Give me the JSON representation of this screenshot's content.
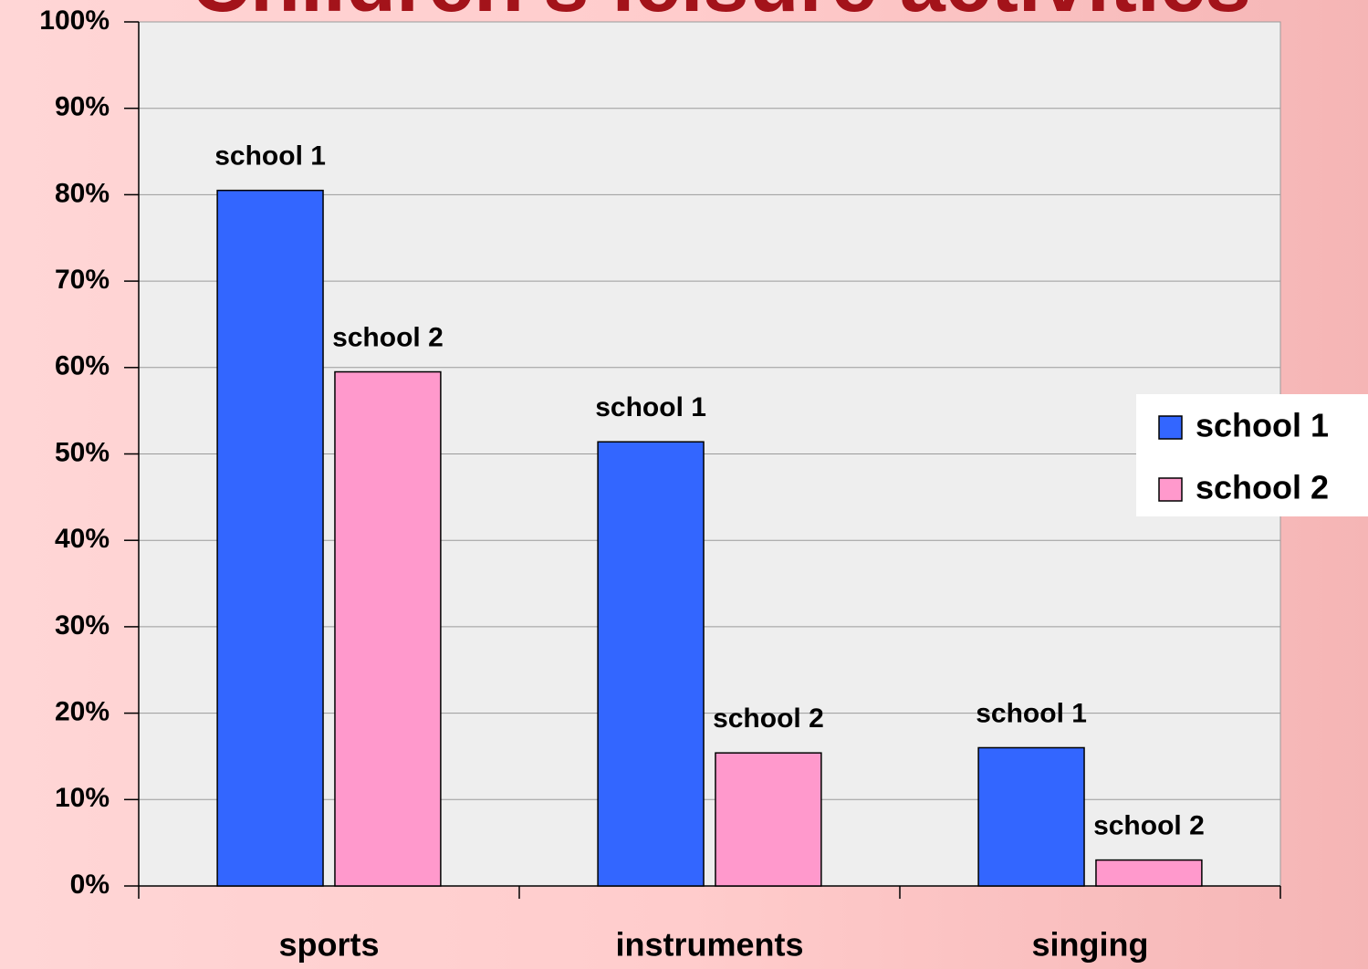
{
  "chart_data": {
    "type": "bar",
    "title": "Children's leisure activities",
    "categories": [
      "sports",
      "instruments",
      "singing"
    ],
    "series": [
      {
        "name": "school 1",
        "color": "#3366ff",
        "values": [
          80.5,
          51.4,
          16
        ]
      },
      {
        "name": "school 2",
        "color": "#ff99cc",
        "values": [
          59.5,
          15.4,
          3
        ]
      }
    ],
    "ylim": [
      0,
      100
    ],
    "yticks": [
      {
        "value": 0,
        "label": "0%"
      },
      {
        "value": 10,
        "label": "10%"
      },
      {
        "value": 20,
        "label": "20%"
      },
      {
        "value": 30,
        "label": "30%"
      },
      {
        "value": 40,
        "label": "40%"
      },
      {
        "value": 50,
        "label": "50%"
      },
      {
        "value": 60,
        "label": "60%"
      },
      {
        "value": 70,
        "label": "70%"
      },
      {
        "value": 80,
        "label": "80%"
      },
      {
        "value": 90,
        "label": "90%"
      },
      {
        "value": 100,
        "label": "100%"
      }
    ],
    "grid": true,
    "legend": "right"
  }
}
